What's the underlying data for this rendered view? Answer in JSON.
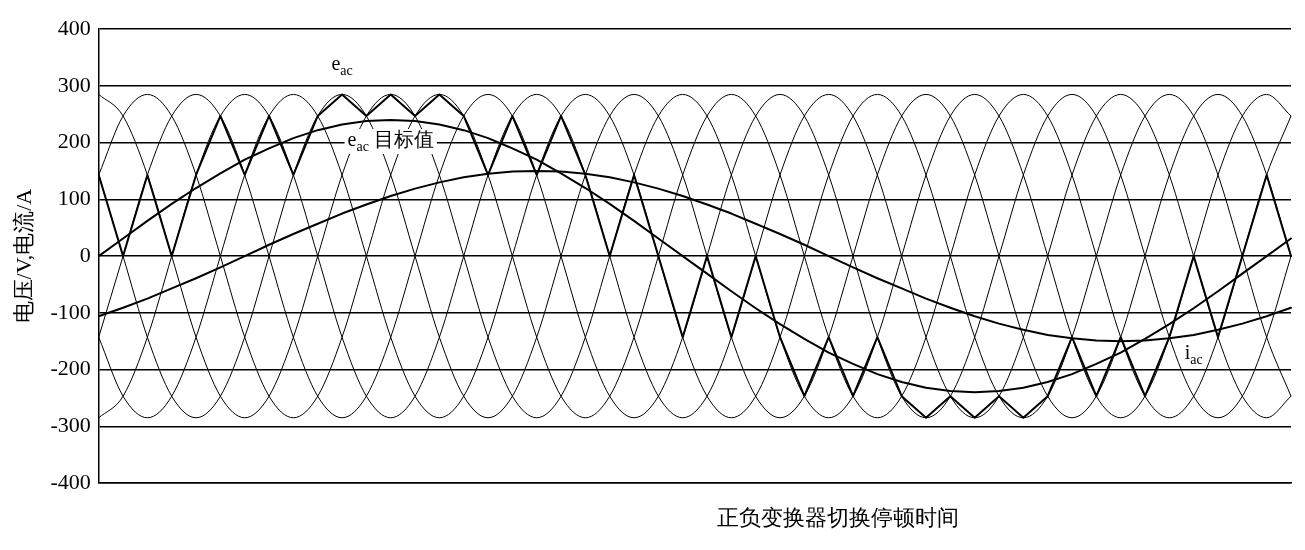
{
  "chart_data": {
    "type": "line",
    "ylabel": "电压/V,电流/A",
    "categories": [
      null,
      null,
      null,
      null,
      null,
      null,
      null,
      null,
      null,
      null,
      null,
      null,
      null,
      null,
      null,
      null,
      null,
      null,
      null,
      null,
      null,
      null,
      null,
      null,
      null,
      null,
      null,
      null,
      null,
      null,
      null,
      null,
      null,
      null,
      null,
      null,
      null,
      null,
      null,
      null,
      null,
      null,
      null,
      null,
      null,
      null,
      null,
      null,
      null,
      null
    ],
    "ylim": [
      -400,
      400
    ],
    "yticks": [
      -400,
      -300,
      -200,
      -100,
      0,
      100,
      200,
      300,
      400
    ],
    "grid": "y",
    "legend": false,
    "marker": "none",
    "line_style": "solid",
    "annotations": [
      "正负变换器切换停顿时间"
    ],
    "series": [
      {
        "color": "#000000",
        "values": [
          285,
          247,
          143,
          0,
          -143,
          -247,
          -285,
          -247,
          -143,
          0,
          143,
          247,
          285,
          247,
          143,
          0,
          -143,
          -247,
          -285,
          -247,
          -143,
          0,
          143,
          247,
          285,
          247,
          143,
          0,
          -143,
          -247,
          -285,
          -247,
          -143,
          0,
          143,
          247,
          285,
          247,
          143,
          0,
          -143,
          -247,
          -285,
          -247,
          -143,
          0,
          143,
          247,
          285,
          247
        ]
      },
      {
        "color": "#000000",
        "values": [
          143,
          247,
          285,
          247,
          143,
          0,
          -143,
          -247,
          -285,
          -247,
          -143,
          0,
          143,
          247,
          285,
          247,
          143,
          0,
          -143,
          -247,
          -285,
          -247,
          -143,
          0,
          143,
          247,
          285,
          247,
          143,
          0,
          -143,
          -247,
          -285,
          -247,
          -143,
          0,
          143,
          247,
          285,
          247,
          143,
          0,
          -143,
          -247,
          -285,
          -247,
          -143,
          0,
          143,
          247
        ]
      },
      {
        "color": "#000000",
        "values": [
          -143,
          0,
          143,
          247,
          285,
          247,
          143,
          0,
          -143,
          -247,
          -285,
          -247,
          -143,
          0,
          143,
          247,
          285,
          247,
          143,
          0,
          -143,
          -247,
          -285,
          -247,
          -143,
          0,
          143,
          247,
          285,
          247,
          143,
          0,
          -143,
          -247,
          -285,
          -247,
          -143,
          0,
          143,
          247,
          285,
          247,
          143,
          0,
          -143,
          -247,
          -285,
          -247,
          -143,
          0
        ]
      },
      {
        "color": "#000000",
        "values": [
          -285,
          -247,
          -143,
          0,
          143,
          247,
          285,
          247,
          143,
          0,
          -143,
          -247,
          -285,
          -247,
          -143,
          0,
          143,
          247,
          285,
          247,
          143,
          0,
          -143,
          -247,
          -285,
          -247,
          -143,
          0,
          143,
          247,
          285,
          247,
          143,
          0,
          -143,
          -247,
          -285,
          -247,
          -143,
          0,
          143,
          247,
          285,
          247,
          143,
          0,
          -143,
          -247,
          -285,
          -247
        ]
      },
      {
        "color": "#000000",
        "values": [
          -143,
          -247,
          -285,
          -247,
          -143,
          0,
          143,
          247,
          285,
          247,
          143,
          0,
          -143,
          -247,
          -285,
          -247,
          -143,
          0,
          143,
          247,
          285,
          247,
          143,
          0,
          -143,
          -247,
          -285,
          -247,
          -143,
          0,
          143,
          247,
          285,
          247,
          143,
          0,
          -143,
          -247,
          -285,
          -247,
          -143,
          0,
          143,
          247,
          285,
          247,
          143,
          0,
          -143,
          -247
        ]
      },
      {
        "color": "#000000",
        "values": [
          143,
          0,
          -143,
          -247,
          -285,
          -247,
          -143,
          0,
          143,
          247,
          285,
          247,
          143,
          0,
          -143,
          -247,
          -285,
          -247,
          -143,
          0,
          143,
          247,
          285,
          247,
          143,
          0,
          -143,
          -247,
          -285,
          -247,
          -143,
          0,
          143,
          247,
          285,
          247,
          143,
          0,
          -143,
          -247,
          -285,
          -247,
          -143,
          0,
          143,
          247,
          285,
          247,
          143,
          0
        ]
      },
      {
        "name": "e$_{ac}$",
        "color": "#000000",
        "values": [
          143,
          0,
          143,
          0,
          143,
          247,
          143,
          247,
          143,
          247,
          285,
          247,
          285,
          247,
          285,
          247,
          143,
          247,
          143,
          247,
          143,
          0,
          143,
          0,
          -143,
          0,
          -143,
          0,
          -143,
          -247,
          -143,
          -247,
          -143,
          -247,
          -285,
          -247,
          -285,
          -247,
          -285,
          -247,
          -143,
          -247,
          -143,
          -247,
          -143,
          0,
          -143,
          0,
          143,
          0
        ]
      },
      {
        "name": "e$_{ac}$ 目标值",
        "color": "#000000",
        "values": [
          0,
          31,
          62,
          92,
          120,
          146,
          170,
          190,
          208,
          222,
          232,
          238,
          240,
          238,
          232,
          222,
          208,
          190,
          170,
          146,
          120,
          92,
          62,
          31,
          0,
          -31,
          -62,
          -92,
          -120,
          -146,
          -170,
          -190,
          -208,
          -222,
          -232,
          -238,
          -240,
          -238,
          -232,
          -222,
          -208,
          -190,
          -170,
          -146,
          -120,
          -92,
          -62,
          -31,
          0,
          31
        ]
      },
      {
        "name": "i$_{ac}$",
        "color": "#000000",
        "values": [
          -106,
          -91,
          -75,
          -57,
          -39,
          -20,
          0,
          20,
          39,
          57,
          75,
          91,
          106,
          119,
          130,
          139,
          145,
          149,
          150,
          149,
          145,
          139,
          130,
          119,
          106,
          91,
          75,
          57,
          39,
          20,
          0,
          -20,
          -39,
          -57,
          -75,
          -91,
          -106,
          -119,
          -130,
          -139,
          -145,
          -149,
          -150,
          -149,
          -145,
          -139,
          -130,
          -119,
          -106,
          -91
        ]
      }
    ]
  }
}
